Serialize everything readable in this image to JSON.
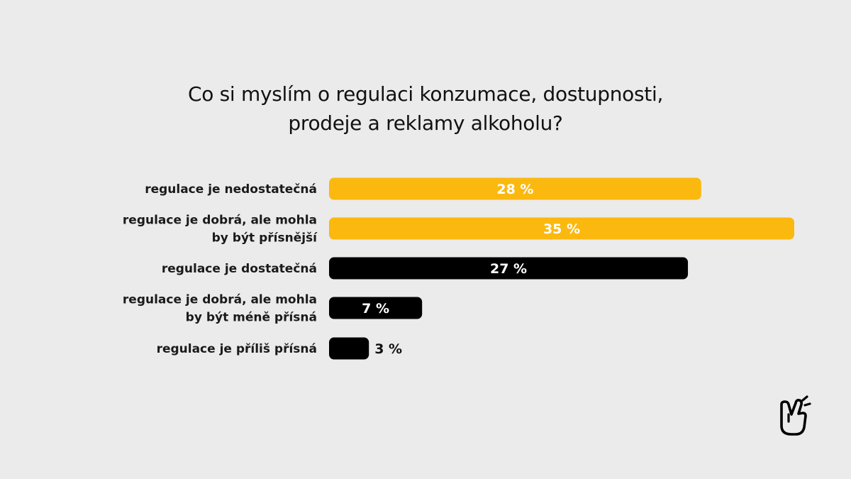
{
  "chart_data": {
    "type": "bar",
    "orientation": "horizontal",
    "title_lines": [
      "Co si myslím o regulaci konzumace, dostupnosti,",
      "prodeje a reklamy alkoholu?"
    ],
    "categories": [
      [
        "regulace je nedostatečná"
      ],
      [
        "regulace je dobrá, ale mohla",
        "by být přísnější"
      ],
      [
        "regulace je dostatečná"
      ],
      [
        "regulace je dobrá, ale mohla",
        "by být méně přísná"
      ],
      [
        "regulace je příliš přísná"
      ]
    ],
    "values": [
      28,
      35,
      27,
      7,
      3
    ],
    "value_labels": [
      "28 %",
      "35 %",
      "27 %",
      "7 %",
      "3 %"
    ],
    "bar_colors": [
      "#fbb80f",
      "#fbb80f",
      "#000000",
      "#000000",
      "#000000"
    ],
    "value_label_colors": [
      "#ffffff",
      "#ffffff",
      "#ffffff",
      "#ffffff",
      "#111111"
    ],
    "xlim": [
      0,
      35
    ],
    "grid": false,
    "legend": "none"
  },
  "logo": {
    "icon": "pointing-hand-icon"
  }
}
